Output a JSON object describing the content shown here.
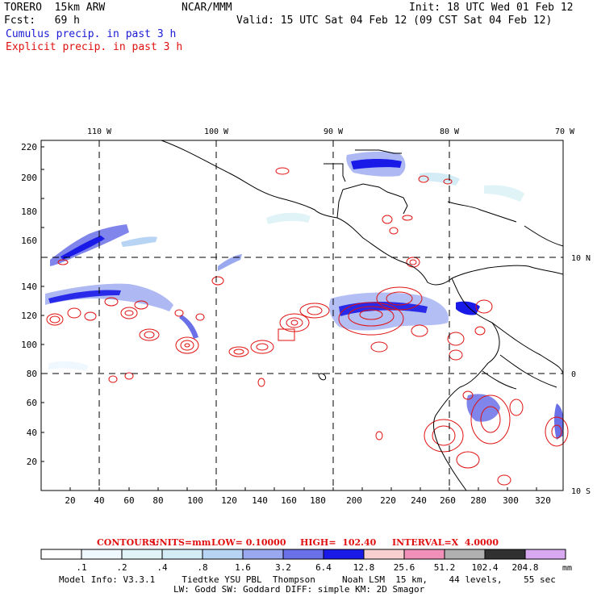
{
  "header": {
    "model": "TORERO  15km ARW",
    "center": "NCAR/MMM",
    "init": "Init: 18 UTC Wed 01 Feb 12",
    "fcst": "Fcst:   69 h",
    "valid": "Valid: 15 UTC Sat 04 Feb 12 (09 CST Sat 04 Feb 12)",
    "legend_cumulus": "Cumulus precip. in past 3 h",
    "legend_explicit": "Explicit precip. in past 3 h"
  },
  "colors": {
    "cumulus": "#1a1ad6",
    "explicit": "#e01010",
    "grid": "#000000"
  },
  "map": {
    "x_ticks": [
      "20",
      "40",
      "60",
      "80",
      "100",
      "120",
      "140",
      "160",
      "180",
      "200",
      "220",
      "240",
      "260",
      "280",
      "300",
      "320"
    ],
    "y_ticks": [
      "20",
      "40",
      "60",
      "80",
      "100",
      "120",
      "140",
      "160",
      "180",
      "200",
      "220"
    ],
    "lon_labels": [
      "110 W",
      "100 W",
      "90 W",
      "80 W",
      "70 W"
    ],
    "lat_labels": [
      "10 N",
      "0",
      "10 S"
    ]
  },
  "contours_line": {
    "label": "CONTOURS:",
    "units": "UNITS=mm",
    "low": "LOW= 0.10000",
    "high": "HIGH=  102.40",
    "interval": "INTERVAL=X  4.0000"
  },
  "colorbar": {
    "labels": [
      ".1",
      ".2",
      ".4",
      ".8",
      "1.6",
      "3.2",
      "6.4",
      "12.8",
      "25.6",
      "51.2",
      "102.4",
      "204.8"
    ],
    "unit": "mm",
    "colors": [
      "#ffffff",
      "#f0f8ff",
      "#e0f4f8",
      "#d4ecf6",
      "#b8d4f4",
      "#9aa8f0",
      "#6a70e8",
      "#1a1ae8",
      "#f8d0d0",
      "#f090b8",
      "#b0b0b0",
      "#303030",
      "#d8a8f0"
    ]
  },
  "footer": {
    "line1": "Model Info: V3.3.1     Tiedtke YSU PBL  Thompson     Noah LSM  15 km,    44 levels,    55 sec",
    "line2": "LW: Godd SW: Goddard DIFF: simple KM: 2D Smagor"
  }
}
